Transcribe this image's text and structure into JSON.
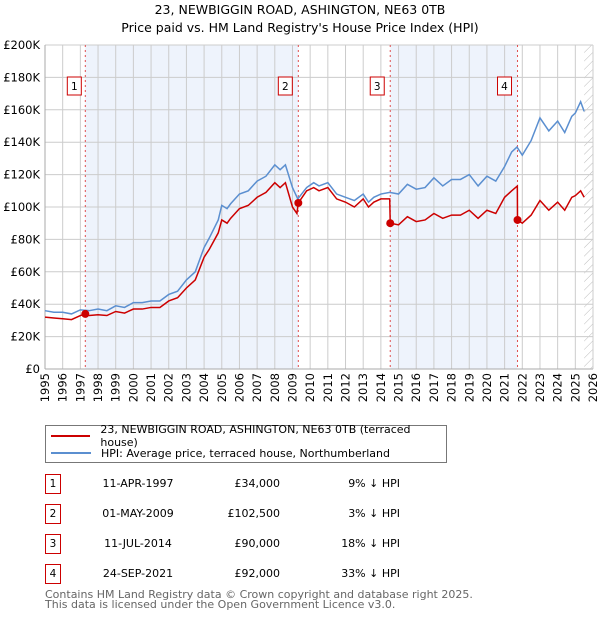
{
  "title_line1": "23, NEWBIGGIN ROAD, ASHINGTON, NE63 0TB",
  "title_line2": "Price paid vs. HM Land Registry's House Price Index (HPI)",
  "legend": {
    "price_label": "23, NEWBIGGIN ROAD, ASHINGTON, NE63 0TB (terraced house)",
    "hpi_label": "HPI: Average price, terraced house, Northumberland"
  },
  "colors": {
    "price": "#cc0000",
    "hpi": "#5b8fd0",
    "shade": "#eef3fc"
  },
  "sales": [
    {
      "num": "1",
      "date": "11-APR-1997",
      "price": "£34,000",
      "hpi": "9% ↓ HPI"
    },
    {
      "num": "2",
      "date": "01-MAY-2009",
      "price": "£102,500",
      "hpi": "3% ↓ HPI"
    },
    {
      "num": "3",
      "date": "11-JUL-2014",
      "price": "£90,000",
      "hpi": "18% ↓ HPI"
    },
    {
      "num": "4",
      "date": "24-SEP-2021",
      "price": "£92,000",
      "hpi": "33% ↓ HPI"
    }
  ],
  "footer": {
    "line1": "Contains HM Land Registry data © Crown copyright and database right 2025.",
    "line2": "This data is licensed under the Open Government Licence v3.0."
  },
  "chart_data": {
    "type": "line",
    "xlim": [
      1995,
      2026
    ],
    "ylim": [
      0,
      200000
    ],
    "x_ticks": [
      "1995",
      "1996",
      "1997",
      "1998",
      "1999",
      "2000",
      "2001",
      "2002",
      "2003",
      "2004",
      "2005",
      "2006",
      "2007",
      "2008",
      "2009",
      "2010",
      "2011",
      "2012",
      "2013",
      "2014",
      "2015",
      "2016",
      "2017",
      "2018",
      "2019",
      "2020",
      "2021",
      "2022",
      "2023",
      "2024",
      "2025",
      "2026"
    ],
    "y_ticks": [
      {
        "v": 0,
        "label": "£0"
      },
      {
        "v": 20000,
        "label": "£20K"
      },
      {
        "v": 40000,
        "label": "£40K"
      },
      {
        "v": 60000,
        "label": "£60K"
      },
      {
        "v": 80000,
        "label": "£80K"
      },
      {
        "v": 100000,
        "label": "£100K"
      },
      {
        "v": 120000,
        "label": "£120K"
      },
      {
        "v": 140000,
        "label": "£140K"
      },
      {
        "v": 160000,
        "label": "£160K"
      },
      {
        "v": 180000,
        "label": "£180K"
      },
      {
        "v": 200000,
        "label": "£200K"
      }
    ],
    "grid": true,
    "forecast_hatch_from": 2025.5,
    "shaded_periods": [
      [
        1997.28,
        2009.33
      ],
      [
        2014.53,
        2021.73
      ]
    ],
    "markers": [
      {
        "label": "1",
        "x": 1997.28,
        "y": 34000
      },
      {
        "label": "2",
        "x": 2009.33,
        "y": 102500
      },
      {
        "label": "3",
        "x": 2014.53,
        "y": 90000
      },
      {
        "label": "4",
        "x": 2021.73,
        "y": 92000
      }
    ],
    "series": [
      {
        "name": "HPI",
        "points": [
          [
            1995,
            36000
          ],
          [
            1995.5,
            35000
          ],
          [
            1996,
            35000
          ],
          [
            1996.5,
            34000
          ],
          [
            1997,
            36500
          ],
          [
            1997.5,
            36000
          ],
          [
            1998,
            37000
          ],
          [
            1998.5,
            36000
          ],
          [
            1999,
            39000
          ],
          [
            1999.5,
            38000
          ],
          [
            2000,
            41000
          ],
          [
            2000.5,
            41000
          ],
          [
            2001,
            42000
          ],
          [
            2001.5,
            42000
          ],
          [
            2002,
            46000
          ],
          [
            2002.5,
            48000
          ],
          [
            2003,
            55000
          ],
          [
            2003.5,
            60000
          ],
          [
            2004,
            75000
          ],
          [
            2004.3,
            81000
          ],
          [
            2004.8,
            92000
          ],
          [
            2005,
            101000
          ],
          [
            2005.3,
            99000
          ],
          [
            2005.5,
            102000
          ],
          [
            2006,
            108000
          ],
          [
            2006.5,
            110000
          ],
          [
            2007,
            116000
          ],
          [
            2007.5,
            119000
          ],
          [
            2008,
            126000
          ],
          [
            2008.3,
            123000
          ],
          [
            2008.6,
            126000
          ],
          [
            2009,
            112000
          ],
          [
            2009.3,
            105000
          ],
          [
            2009.8,
            112000
          ],
          [
            2010.2,
            115000
          ],
          [
            2010.5,
            113000
          ],
          [
            2011,
            115000
          ],
          [
            2011.5,
            108000
          ],
          [
            2012,
            106000
          ],
          [
            2012.5,
            104000
          ],
          [
            2013,
            108000
          ],
          [
            2013.3,
            103000
          ],
          [
            2013.6,
            106000
          ],
          [
            2014,
            108000
          ],
          [
            2014.5,
            109000
          ],
          [
            2015,
            108000
          ],
          [
            2015.5,
            114000
          ],
          [
            2016,
            111000
          ],
          [
            2016.5,
            112000
          ],
          [
            2017,
            118000
          ],
          [
            2017.5,
            113000
          ],
          [
            2018,
            117000
          ],
          [
            2018.5,
            117000
          ],
          [
            2019,
            120000
          ],
          [
            2019.5,
            113000
          ],
          [
            2020,
            119000
          ],
          [
            2020.5,
            116000
          ],
          [
            2021,
            125000
          ],
          [
            2021.4,
            134000
          ],
          [
            2021.7,
            137000
          ],
          [
            2022,
            132000
          ],
          [
            2022.5,
            141000
          ],
          [
            2023,
            155000
          ],
          [
            2023.5,
            147000
          ],
          [
            2024,
            153000
          ],
          [
            2024.4,
            146000
          ],
          [
            2024.8,
            156000
          ],
          [
            2025,
            158000
          ],
          [
            2025.3,
            165000
          ],
          [
            2025.5,
            159000
          ]
        ]
      },
      {
        "name": "Price paid",
        "points": [
          [
            1995,
            32000
          ],
          [
            1995.5,
            31500
          ],
          [
            1996,
            31000
          ],
          [
            1996.5,
            30500
          ],
          [
            1997,
            33000
          ],
          [
            1997.28,
            34000
          ],
          [
            1997.5,
            33000
          ],
          [
            1998,
            33500
          ],
          [
            1998.5,
            33000
          ],
          [
            1999,
            35500
          ],
          [
            1999.5,
            34500
          ],
          [
            2000,
            37000
          ],
          [
            2000.5,
            37000
          ],
          [
            2001,
            38000
          ],
          [
            2001.5,
            38000
          ],
          [
            2002,
            42000
          ],
          [
            2002.5,
            44000
          ],
          [
            2003,
            50000
          ],
          [
            2003.5,
            55000
          ],
          [
            2004,
            69000
          ],
          [
            2004.3,
            74000
          ],
          [
            2004.8,
            84000
          ],
          [
            2005,
            92000
          ],
          [
            2005.3,
            90000
          ],
          [
            2005.5,
            93000
          ],
          [
            2006,
            99000
          ],
          [
            2006.5,
            101000
          ],
          [
            2007,
            106000
          ],
          [
            2007.5,
            109000
          ],
          [
            2008,
            115000
          ],
          [
            2008.3,
            112000
          ],
          [
            2008.6,
            115000
          ],
          [
            2009,
            100000
          ],
          [
            2009.25,
            96000
          ],
          [
            2009.33,
            102500
          ],
          [
            2009.8,
            110000
          ],
          [
            2010.2,
            112000
          ],
          [
            2010.5,
            110000
          ],
          [
            2011,
            112000
          ],
          [
            2011.5,
            105000
          ],
          [
            2012,
            103000
          ],
          [
            2012.5,
            100000
          ],
          [
            2013,
            105000
          ],
          [
            2013.3,
            100000
          ],
          [
            2013.6,
            103000
          ],
          [
            2014,
            105000
          ],
          [
            2014.5,
            105000
          ],
          [
            2014.53,
            90000
          ],
          [
            2015,
            89000
          ],
          [
            2015.5,
            94000
          ],
          [
            2016,
            91000
          ],
          [
            2016.5,
            92000
          ],
          [
            2017,
            96000
          ],
          [
            2017.5,
            93000
          ],
          [
            2018,
            95000
          ],
          [
            2018.5,
            95000
          ],
          [
            2019,
            98000
          ],
          [
            2019.5,
            93000
          ],
          [
            2020,
            98000
          ],
          [
            2020.5,
            96000
          ],
          [
            2021,
            106000
          ],
          [
            2021.4,
            110000
          ],
          [
            2021.72,
            113000
          ],
          [
            2021.73,
            92000
          ],
          [
            2022,
            90000
          ],
          [
            2022.5,
            95000
          ],
          [
            2023,
            104000
          ],
          [
            2023.5,
            98000
          ],
          [
            2024,
            103000
          ],
          [
            2024.4,
            98000
          ],
          [
            2024.8,
            106000
          ],
          [
            2025,
            107000
          ],
          [
            2025.3,
            110000
          ],
          [
            2025.5,
            106000
          ]
        ]
      }
    ]
  }
}
